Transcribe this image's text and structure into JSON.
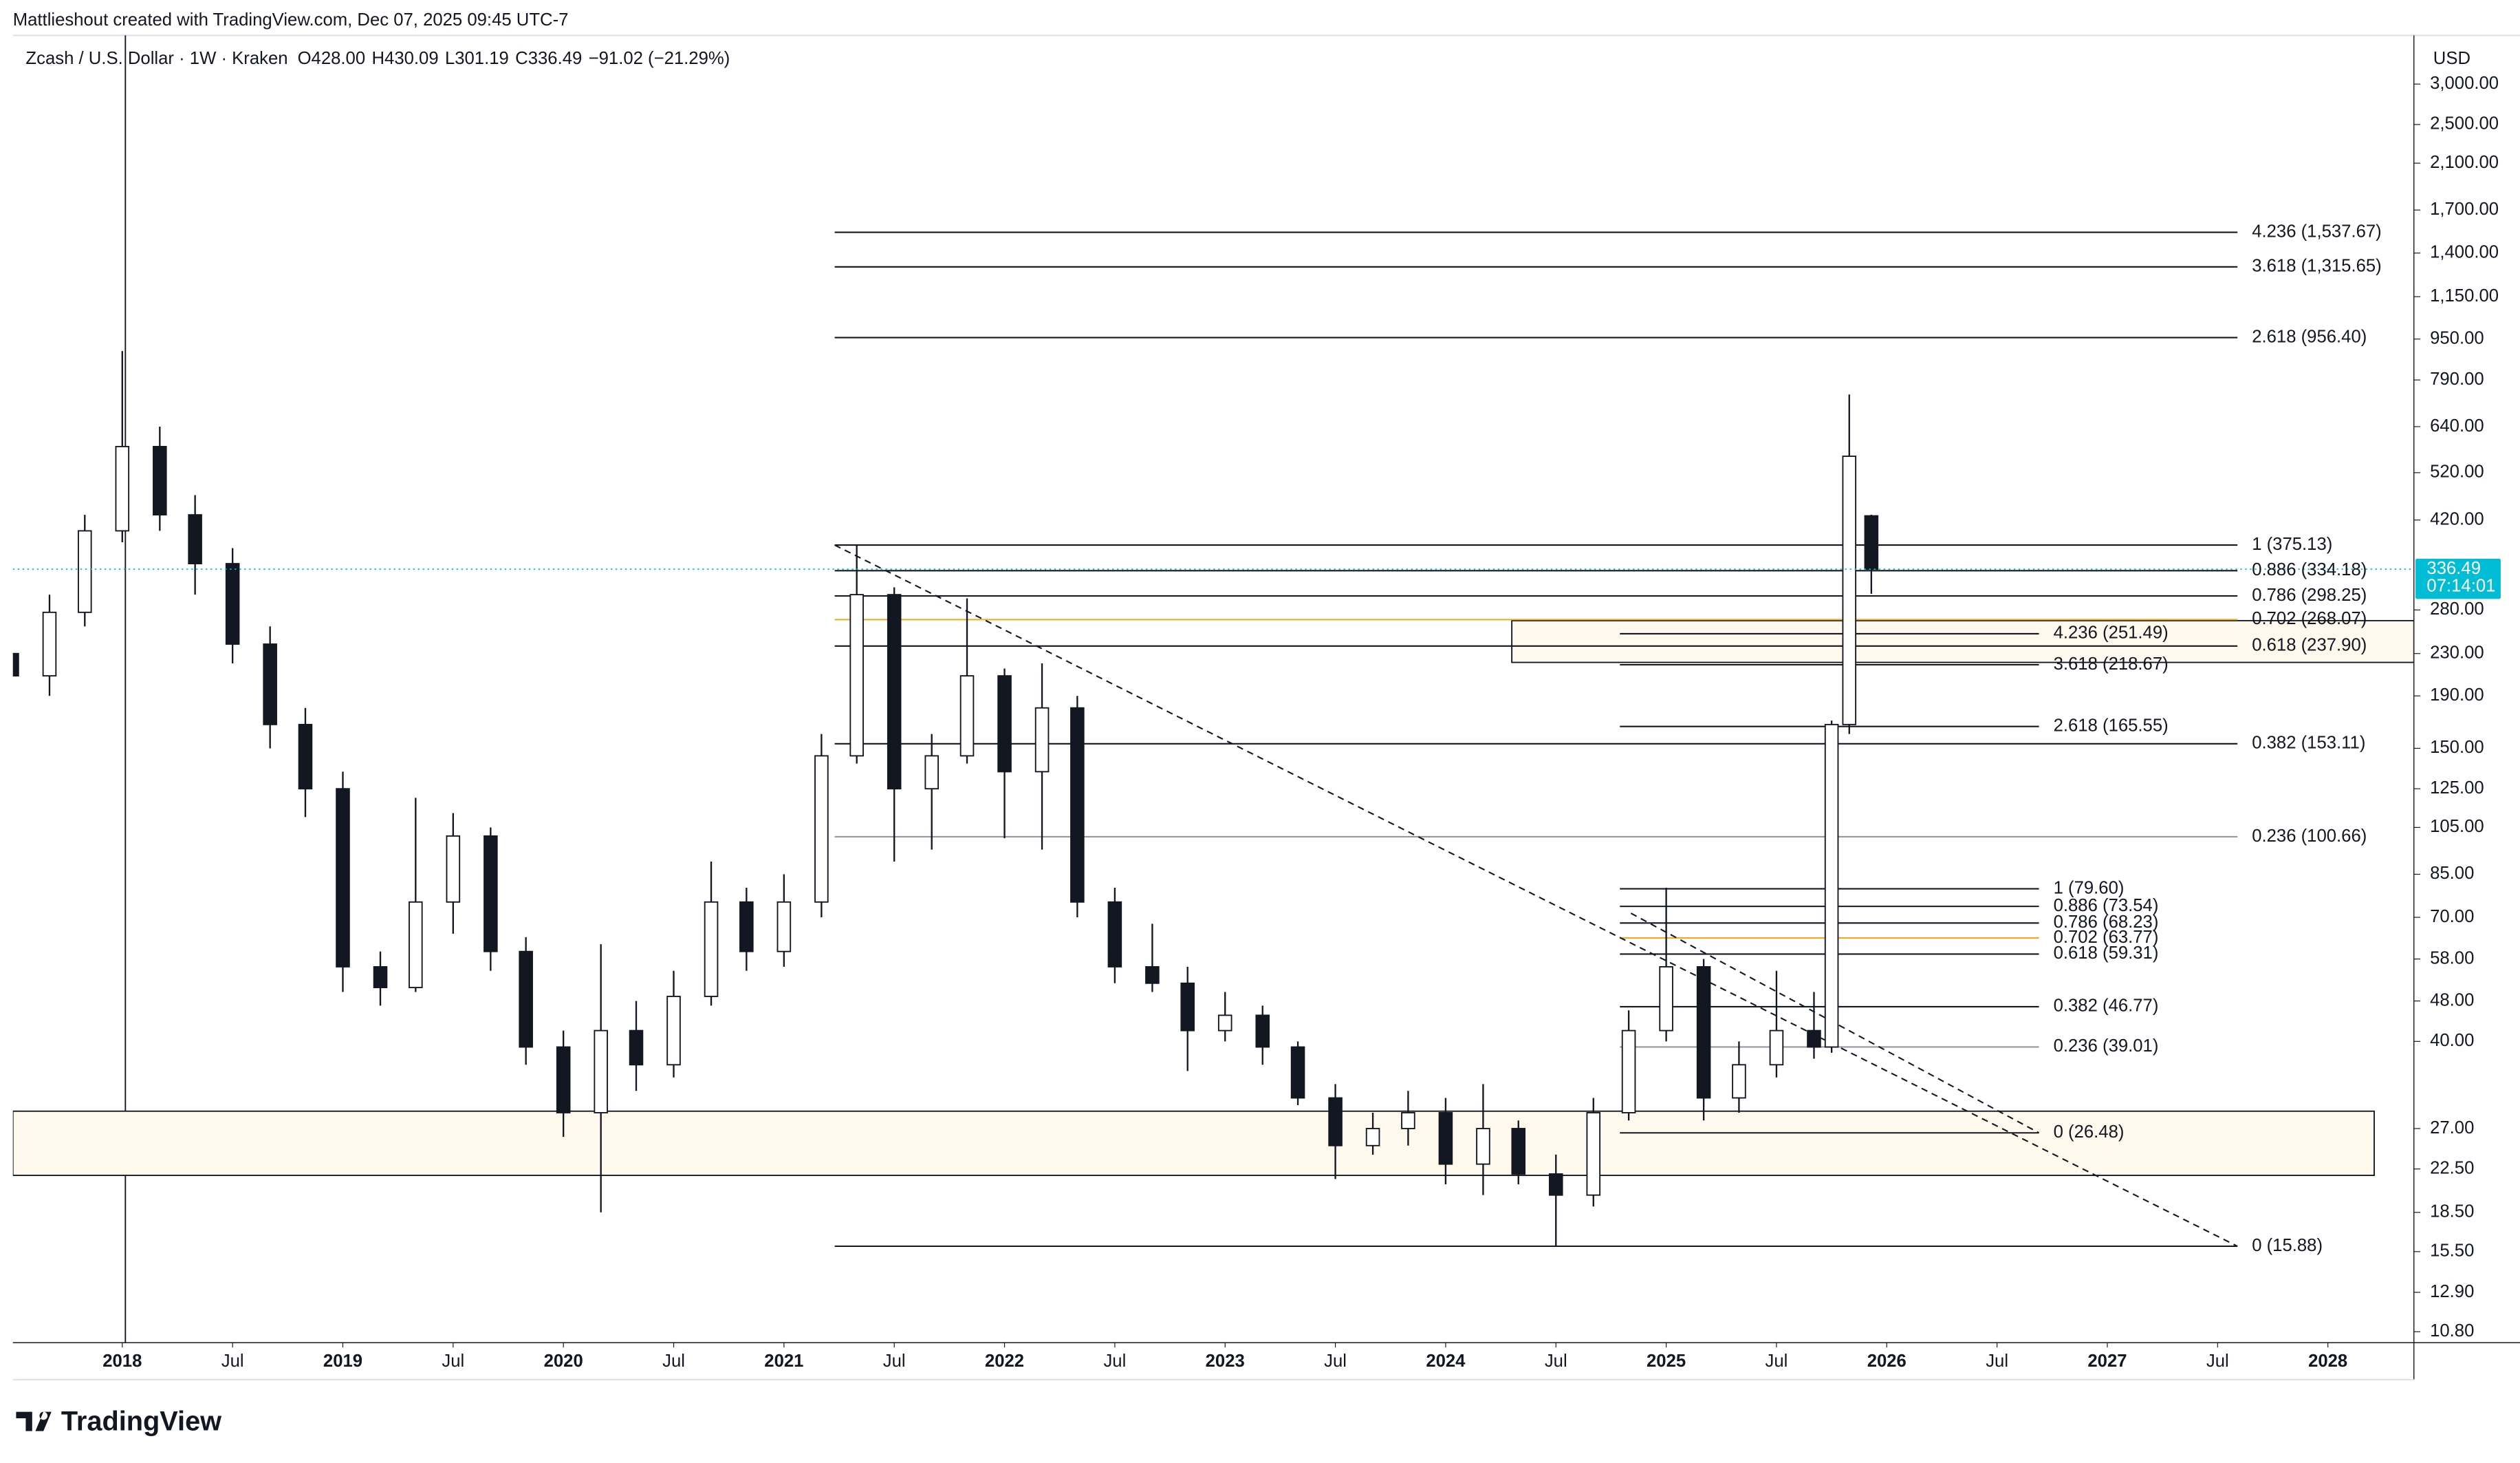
{
  "attribution": "Mattlieshout created with TradingView.com, Dec 07, 2025 09:45 UTC-7",
  "brand": "TradingView",
  "chart_data": {
    "type": "candlestick",
    "title": "Zcash / U.S. Dollar · 1W · Kraken",
    "legend_values": [
      "O428.00",
      "H430.09",
      "L301.19",
      "C336.49",
      "−91.02 (−21.29%)"
    ],
    "currency": "USD",
    "log_scale": true,
    "x": [
      2017.5,
      2017.67,
      2017.83,
      2018.0,
      2018.17,
      2018.33,
      2018.5,
      2018.67,
      2018.83,
      2019.0,
      2019.17,
      2019.33,
      2019.5,
      2019.67,
      2019.83,
      2020.0,
      2020.17,
      2020.33,
      2020.5,
      2020.67,
      2020.83,
      2021.0,
      2021.17,
      2021.33,
      2021.5,
      2021.67,
      2021.83,
      2022.0,
      2022.17,
      2022.33,
      2022.5,
      2022.67,
      2022.83,
      2023.0,
      2023.17,
      2023.33,
      2023.5,
      2023.67,
      2023.83,
      2024.0,
      2024.17,
      2024.33,
      2024.5,
      2024.67,
      2024.83,
      2025.0,
      2025.17,
      2025.33,
      2025.5,
      2025.67,
      2025.75,
      2025.83,
      2025.93
    ],
    "open": [
      230,
      208,
      277,
      400,
      585,
      430,
      345,
      240,
      167,
      125,
      56,
      51,
      75,
      101,
      60,
      39,
      29,
      42,
      36,
      49,
      75,
      60,
      75,
      145,
      300,
      125,
      145,
      208,
      135,
      180,
      75,
      56,
      52,
      42,
      45,
      39,
      31,
      25,
      27,
      29,
      23,
      27,
      22,
      20,
      29,
      42,
      56,
      31,
      36,
      42,
      39,
      167,
      428
    ],
    "high": [
      260,
      300,
      430,
      900,
      640,
      470,
      370,
      260,
      180,
      135,
      60,
      120,
      112,
      105,
      64,
      42,
      62,
      48,
      55,
      90,
      80,
      85,
      160,
      375,
      310,
      160,
      295,
      215,
      220,
      190,
      80,
      68,
      56,
      50,
      47,
      40,
      33,
      29,
      32,
      31,
      33,
      28,
      24,
      31,
      46,
      80,
      58,
      40,
      55,
      50,
      170,
      740,
      430.09
    ],
    "low": [
      180,
      190,
      260,
      380,
      400,
      300,
      220,
      150,
      110,
      50,
      47,
      50,
      65,
      55,
      36,
      26,
      18.5,
      32,
      34,
      47,
      55,
      56,
      70,
      140,
      90,
      95,
      140,
      100,
      95,
      70,
      52,
      50,
      35,
      40,
      36,
      30,
      21.5,
      24,
      25,
      21,
      20,
      21,
      15.88,
      19,
      28,
      40,
      28,
      29,
      34,
      37,
      38,
      160,
      301.19
    ],
    "close": [
      208,
      277,
      400,
      585,
      430,
      345,
      240,
      167,
      125,
      56,
      51,
      75,
      101,
      60,
      39,
      29,
      42,
      36,
      49,
      75,
      60,
      75,
      145,
      300,
      125,
      145,
      208,
      135,
      180,
      75,
      56,
      52,
      42,
      45,
      39,
      31,
      25,
      27,
      29,
      23,
      27,
      22,
      20,
      29,
      42,
      56,
      31,
      36,
      42,
      39,
      167,
      560,
      336.49
    ],
    "up_color": "#ffffff",
    "down_color": "#131722",
    "outline_color": "#131722",
    "xlim": [
      2017.504,
      2028.39
    ],
    "xticks": [
      2018,
      {
        "value": 2018.5,
        "label": "Jul"
      },
      2019,
      {
        "value": 2019.5,
        "label": "Jul"
      },
      2020,
      {
        "value": 2020.5,
        "label": "Jul"
      },
      2021,
      {
        "value": 2021.5,
        "label": "Jul"
      },
      2022,
      {
        "value": 2022.5,
        "label": "Jul"
      },
      2023,
      {
        "value": 2023.5,
        "label": "Jul"
      },
      2024,
      {
        "value": 2024.5,
        "label": "Jul"
      },
      2025,
      {
        "value": 2025.5,
        "label": "Jul"
      },
      2026,
      {
        "value": 2026.5,
        "label": "Jul"
      },
      2027,
      {
        "value": 2027.5,
        "label": "Jul"
      },
      2028
    ],
    "ylim": [
      10.28,
      3737
    ],
    "yticks": [
      {
        "value": 10.8,
        "label": "10.80"
      },
      {
        "value": 12.9,
        "label": "12.90"
      },
      {
        "value": 15.5,
        "label": "15.50"
      },
      {
        "value": 18.5,
        "label": "18.50"
      },
      {
        "value": 22.5,
        "label": "22.50"
      },
      {
        "value": 27,
        "label": "27.00"
      },
      {
        "value": 40,
        "label": "40.00"
      },
      {
        "value": 48,
        "label": "48.00"
      },
      {
        "value": 58,
        "label": "58.00"
      },
      {
        "value": 70,
        "label": "70.00"
      },
      {
        "value": 85,
        "label": "85.00"
      },
      {
        "value": 105,
        "label": "105.00"
      },
      {
        "value": 125,
        "label": "125.00"
      },
      {
        "value": 150,
        "label": "150.00"
      },
      {
        "value": 190,
        "label": "190.00"
      },
      {
        "value": 230,
        "label": "230.00"
      },
      {
        "value": 280,
        "label": "280.00"
      },
      {
        "value": 420,
        "label": "420.00"
      },
      {
        "value": 520,
        "label": "520.00"
      },
      {
        "value": 640,
        "label": "640.00"
      },
      {
        "value": 790,
        "label": "790.00"
      },
      {
        "value": 950,
        "label": "950.00"
      },
      {
        "value": 1150,
        "label": "1,150.00"
      },
      {
        "value": 1400,
        "label": "1,400.00"
      },
      {
        "value": 1700,
        "label": "1,700.00"
      },
      {
        "value": 2100,
        "label": "2,100.00"
      },
      {
        "value": 2500,
        "label": "2,500.00"
      },
      {
        "value": 3000,
        "label": "3,000.00"
      }
    ],
    "last_price": {
      "value": 336.49,
      "countdown": "07:14:01",
      "color": "#00bcd4"
    },
    "fib_levels": [
      {
        "label": "4.236 (1,537.67)",
        "value": 1537.67,
        "start": 2021.23,
        "end": 2027.59,
        "color": "#131722"
      },
      {
        "label": "3.618 (1,315.65)",
        "value": 1315.65,
        "start": 2021.23,
        "end": 2027.59,
        "color": "#131722"
      },
      {
        "label": "2.618 (956.40)",
        "value": 956.4,
        "start": 2021.23,
        "end": 2027.59,
        "color": "#131722"
      },
      {
        "label": "1 (375.13)",
        "value": 375.13,
        "start": 2021.23,
        "end": 2027.59,
        "color": "#131722"
      },
      {
        "label": "0.886 (334.18)",
        "value": 334.18,
        "start": 2021.23,
        "end": 2027.59,
        "color": "#131722"
      },
      {
        "label": "0.786 (298.25)",
        "value": 298.25,
        "start": 2021.23,
        "end": 2027.59,
        "color": "#131722"
      },
      {
        "label": "0.702 (268.07)",
        "value": 268.07,
        "start": 2021.23,
        "end": 2027.59,
        "color": "#f5a623"
      },
      {
        "label": "0.618 (237.90)",
        "value": 237.9,
        "start": 2021.23,
        "end": 2027.59,
        "color": "#131722"
      },
      {
        "label": "0.382 (153.11)",
        "value": 153.11,
        "start": 2021.23,
        "end": 2027.59,
        "color": "#131722"
      },
      {
        "label": "0.236 (100.66)",
        "value": 100.66,
        "start": 2021.23,
        "end": 2027.59,
        "color": "#9598a1"
      },
      {
        "label": "0 (15.88)",
        "value": 15.88,
        "start": 2021.23,
        "end": 2027.59,
        "color": "#131722"
      },
      {
        "label": "4.236 (251.49)",
        "value": 251.49,
        "start": 2024.79,
        "end": 2026.69,
        "color": "#131722"
      },
      {
        "label": "3.618 (218.67)",
        "value": 218.67,
        "start": 2024.79,
        "end": 2026.69,
        "color": "#131722"
      },
      {
        "label": "2.618 (165.55)",
        "value": 165.55,
        "start": 2024.79,
        "end": 2026.69,
        "color": "#131722"
      },
      {
        "label": "1 (79.60)",
        "value": 79.6,
        "start": 2024.79,
        "end": 2026.69,
        "color": "#131722"
      },
      {
        "label": "0.886 (73.54)",
        "value": 73.54,
        "start": 2024.79,
        "end": 2026.69,
        "color": "#131722"
      },
      {
        "label": "0.786 (68.23)",
        "value": 68.23,
        "start": 2024.79,
        "end": 2026.69,
        "color": "#131722"
      },
      {
        "label": "0.702 (63.77)",
        "value": 63.77,
        "start": 2024.79,
        "end": 2026.69,
        "color": "#f5a623"
      },
      {
        "label": "0.618 (59.31)",
        "value": 59.31,
        "start": 2024.79,
        "end": 2026.69,
        "color": "#131722"
      },
      {
        "label": "0.382 (46.77)",
        "value": 46.77,
        "start": 2024.79,
        "end": 2026.69,
        "color": "#131722"
      },
      {
        "label": "0.236 (39.01)",
        "value": 39.01,
        "start": 2024.79,
        "end": 2026.69,
        "color": "#9598a1"
      },
      {
        "label": "0 (26.48)",
        "value": 26.48,
        "start": 2024.79,
        "end": 2026.69,
        "color": "#131722"
      }
    ],
    "zones": [
      {
        "start": 2017.504,
        "end": 2028.21,
        "low": 21.86,
        "high": 29.2
      },
      {
        "start": 2024.3,
        "end": 2028.39,
        "low": 221,
        "high": 266.8
      }
    ],
    "zone_color": "#fff8ec",
    "trendlines": [
      {
        "x": [
          2021.23,
          2027.59
        ],
        "y": [
          375.13,
          15.88
        ]
      },
      {
        "x": [
          2024.84,
          2026.69
        ],
        "y": [
          71.3,
          26.48
        ]
      }
    ]
  }
}
